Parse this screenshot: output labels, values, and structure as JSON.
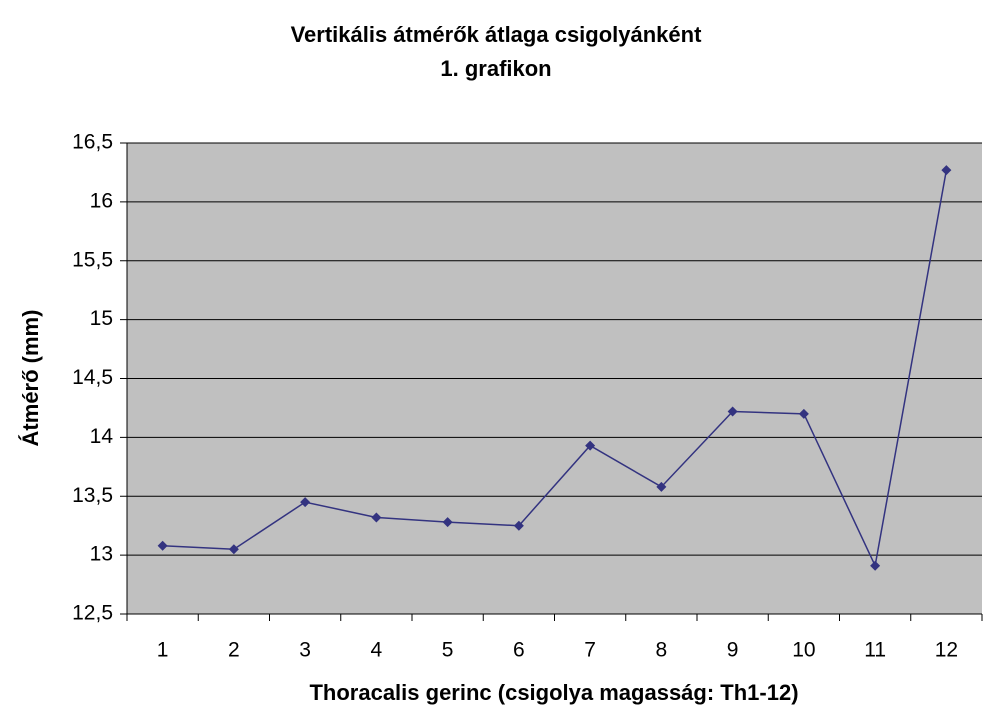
{
  "chart_data": {
    "type": "line",
    "title": "Vertikális átmérők átlaga csigolyánként",
    "subtitle": "1. grafikon",
    "x_label": "Thoracalis gerinc (csigolya magasság: Th1-12)",
    "y_label": "Átmérő (mm)",
    "categories": [
      "1",
      "2",
      "3",
      "4",
      "5",
      "6",
      "7",
      "8",
      "9",
      "10",
      "11",
      "12"
    ],
    "values": [
      13.08,
      13.05,
      13.45,
      13.32,
      13.28,
      13.25,
      13.93,
      13.58,
      14.22,
      14.2,
      12.91,
      16.27
    ],
    "color": "#333380",
    "plot_background": "#c0c0c0",
    "ylim": [
      12.5,
      16.5
    ],
    "yticks": [
      {
        "value": 12.5,
        "label": "12,5"
      },
      13,
      {
        "value": 13.5,
        "label": "13,5"
      },
      14,
      {
        "value": 14.5,
        "label": "14,5"
      },
      15,
      {
        "value": 15.5,
        "label": "15,5"
      },
      16,
      {
        "value": 16.5,
        "label": "16,5"
      }
    ],
    "grid": true
  }
}
